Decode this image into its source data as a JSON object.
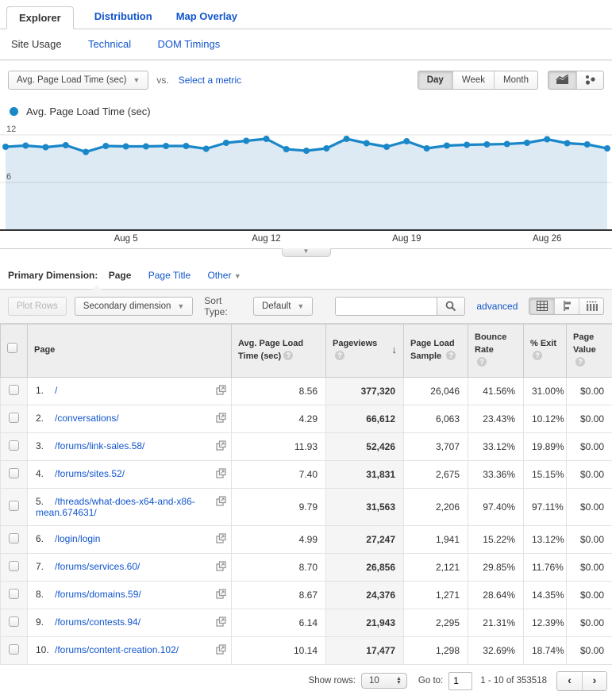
{
  "tabs": {
    "explorer": "Explorer",
    "distribution": "Distribution",
    "map_overlay": "Map Overlay"
  },
  "subnav": {
    "site_usage": "Site Usage",
    "technical": "Technical",
    "dom_timings": "DOM Timings"
  },
  "controls": {
    "metric_dropdown": "Avg. Page Load Time (sec)",
    "vs_label": "vs.",
    "select_metric": "Select a metric",
    "granularity": [
      "Day",
      "Week",
      "Month"
    ],
    "granularity_active": "Day"
  },
  "legend": {
    "series": "Avg. Page Load Time (sec)",
    "color": "#1a87c8"
  },
  "chart_data": {
    "type": "line",
    "title": "Avg. Page Load Time (sec)",
    "line_color": "#1a87c8",
    "area_fill": "#ddeaf4",
    "ylim": [
      0,
      13.6
    ],
    "y_ticks": [
      6,
      12
    ],
    "x_tick_labels": [
      {
        "label": "Aug 5",
        "index": 6
      },
      {
        "label": "Aug 12",
        "index": 13
      },
      {
        "label": "Aug 19",
        "index": 20
      },
      {
        "label": "Aug 26",
        "index": 27
      }
    ],
    "series": [
      {
        "name": "Avg. Page Load Time (sec)",
        "values": [
          10.5,
          10.65,
          10.45,
          10.7,
          9.85,
          10.6,
          10.55,
          10.55,
          10.6,
          10.6,
          10.25,
          11.0,
          11.25,
          11.5,
          10.2,
          10.0,
          10.3,
          11.5,
          10.95,
          10.5,
          11.2,
          10.3,
          10.65,
          10.75,
          10.8,
          10.85,
          11.0,
          11.45,
          10.95,
          10.8,
          10.3
        ]
      }
    ]
  },
  "primary_dimension": {
    "label": "Primary Dimension:",
    "active": "Page",
    "option_page_title": "Page Title",
    "option_other": "Other"
  },
  "toolbar": {
    "plot_rows": "Plot Rows",
    "secondary_dimension": "Secondary dimension",
    "sort_type_label": "Sort Type:",
    "sort_type_value": "Default",
    "search_value": "",
    "advanced": "advanced"
  },
  "table": {
    "headers": [
      "Page",
      "Avg. Page Load Time (sec)",
      "Pageviews",
      "Page Load Sample",
      "Bounce Rate",
      "% Exit",
      "Page Value"
    ],
    "sorted_column": "Pageviews",
    "rows": [
      {
        "num": "1.",
        "page": "/",
        "metrics": [
          "8.56",
          "377,320",
          "26,046",
          "41.56%",
          "31.00%",
          "$0.00"
        ]
      },
      {
        "num": "2.",
        "page": "/conversations/",
        "metrics": [
          "4.29",
          "66,612",
          "6,063",
          "23.43%",
          "10.12%",
          "$0.00"
        ]
      },
      {
        "num": "3.",
        "page": "/forums/link-sales.58/",
        "metrics": [
          "11.93",
          "52,426",
          "3,707",
          "33.12%",
          "19.89%",
          "$0.00"
        ]
      },
      {
        "num": "4.",
        "page": "/forums/sites.52/",
        "metrics": [
          "7.40",
          "31,831",
          "2,675",
          "33.36%",
          "15.15%",
          "$0.00"
        ]
      },
      {
        "num": "5.",
        "page": "/threads/what-does-x64-and-x86-mean.674631/",
        "metrics": [
          "9.79",
          "31,563",
          "2,206",
          "97.40%",
          "97.11%",
          "$0.00"
        ]
      },
      {
        "num": "6.",
        "page": "/login/login",
        "metrics": [
          "4.99",
          "27,247",
          "1,941",
          "15.22%",
          "13.12%",
          "$0.00"
        ]
      },
      {
        "num": "7.",
        "page": "/forums/services.60/",
        "metrics": [
          "8.70",
          "26,856",
          "2,121",
          "29.85%",
          "11.76%",
          "$0.00"
        ]
      },
      {
        "num": "8.",
        "page": "/forums/domains.59/",
        "metrics": [
          "8.67",
          "24,376",
          "1,271",
          "28.64%",
          "14.35%",
          "$0.00"
        ]
      },
      {
        "num": "9.",
        "page": "/forums/contests.94/",
        "metrics": [
          "6.14",
          "21,943",
          "2,295",
          "21.31%",
          "12.39%",
          "$0.00"
        ]
      },
      {
        "num": "10.",
        "page": "/forums/content-creation.102/",
        "metrics": [
          "10.14",
          "17,477",
          "1,298",
          "32.69%",
          "18.74%",
          "$0.00"
        ]
      }
    ]
  },
  "footer": {
    "show_rows_label": "Show rows:",
    "show_rows_value": "10",
    "goto_label": "Go to:",
    "goto_value": "1",
    "range": "1 - 10 of 353518"
  }
}
